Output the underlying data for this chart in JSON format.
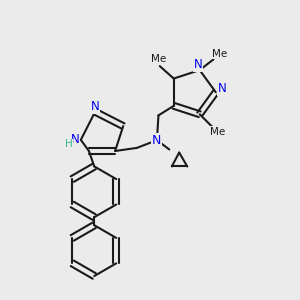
{
  "bg_color": "#ebebeb",
  "bond_color": "#1a1a1a",
  "N_color": "#0000ee",
  "H_color": "#2db88a",
  "lw": 1.5,
  "dbo": 0.012,
  "xlim": [
    0.0,
    1.0
  ],
  "ylim": [
    0.0,
    1.0
  ]
}
